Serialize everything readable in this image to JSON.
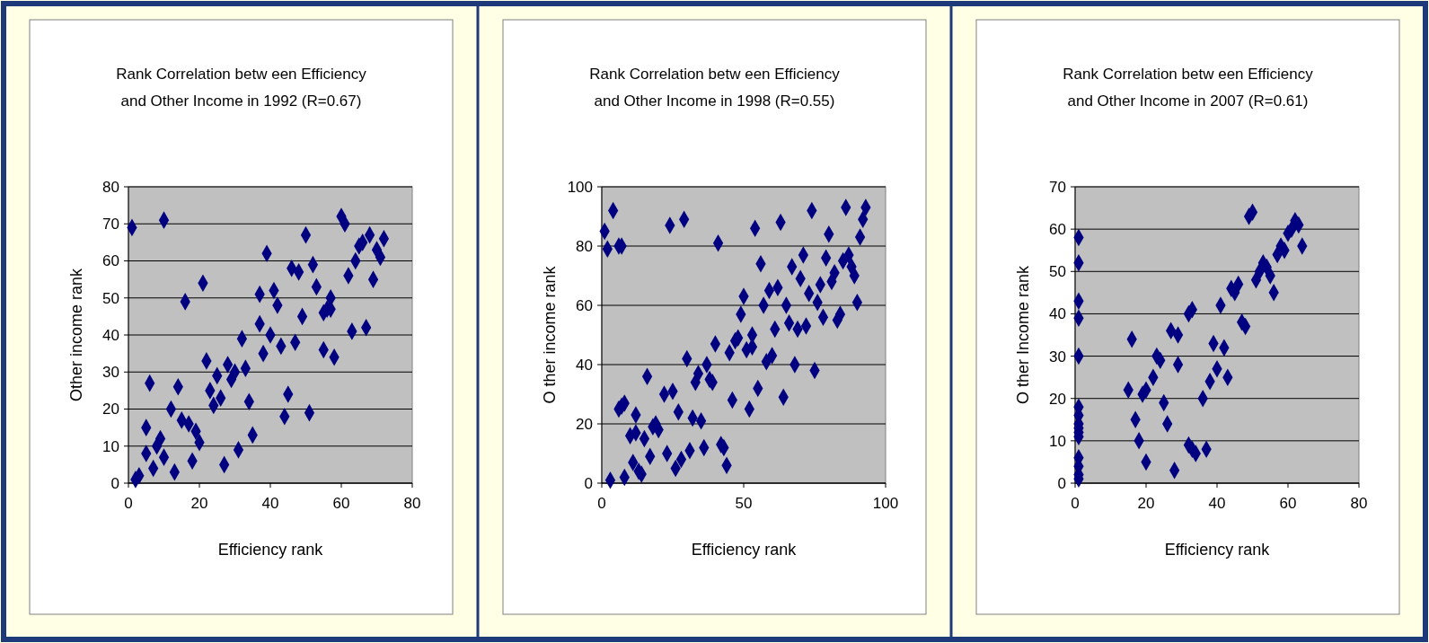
{
  "chart_data": [
    {
      "type": "scatter",
      "title": "Rank Correlation betw een Efficiency\nand Other Income in 1992 (R=0.67)",
      "xlabel": "Efficiency rank",
      "ylabel": "Other income rank",
      "xlim": [
        0,
        80
      ],
      "ylim": [
        0,
        80
      ],
      "xticks": [
        0,
        20,
        40,
        60,
        80
      ],
      "yticks": [
        0,
        10,
        20,
        30,
        40,
        50,
        60,
        70,
        80
      ],
      "grid": "y",
      "marker": "diamond",
      "series": [
        {
          "color": "#000080",
          "x": [
            1,
            2,
            3,
            5,
            5,
            6,
            7,
            8,
            9,
            10,
            10,
            12,
            13,
            14,
            15,
            16,
            17,
            18,
            19,
            20,
            21,
            22,
            23,
            24,
            25,
            26,
            27,
            28,
            29,
            30,
            31,
            32,
            33,
            34,
            35,
            37,
            37,
            38,
            39,
            40,
            41,
            42,
            43,
            44,
            45,
            46,
            47,
            48,
            49,
            50,
            51,
            52,
            53,
            55,
            55,
            56,
            57,
            57,
            58,
            60,
            61,
            62,
            63,
            64,
            65,
            66,
            67,
            68,
            69,
            70,
            71,
            72
          ],
          "values": [
            69,
            1,
            2,
            15,
            8,
            27,
            4,
            10,
            12,
            71,
            7,
            20,
            3,
            26,
            17,
            49,
            16,
            6,
            14,
            11,
            54,
            33,
            25,
            21,
            29,
            23,
            5,
            32,
            28,
            30,
            9,
            39,
            31,
            22,
            13,
            43,
            51,
            35,
            62,
            40,
            52,
            48,
            37,
            18,
            24,
            58,
            38,
            57,
            45,
            67,
            19,
            59,
            53,
            36,
            46,
            47,
            50,
            47,
            34,
            72,
            70,
            56,
            41,
            60,
            64,
            65,
            42,
            67,
            55,
            63,
            61,
            66
          ]
        }
      ]
    },
    {
      "type": "scatter",
      "title": "Rank Correlation betw een Efficiency\nand Other Income in 1998 (R=0.55)",
      "xlabel": "Efficiency rank",
      "ylabel": "O ther income rank",
      "xlim": [
        0,
        100
      ],
      "ylim": [
        0,
        100
      ],
      "xticks": [
        0,
        50,
        100
      ],
      "yticks": [
        0,
        20,
        40,
        60,
        80,
        100
      ],
      "grid": "y",
      "marker": "diamond",
      "series": [
        {
          "color": "#000080",
          "x": [
            1,
            2,
            4,
            6,
            7,
            3,
            8,
            6,
            7,
            8,
            10,
            11,
            12,
            12,
            13,
            14,
            15,
            16,
            17,
            18,
            19,
            20,
            22,
            23,
            24,
            25,
            26,
            27,
            28,
            29,
            30,
            31,
            32,
            33,
            34,
            35,
            36,
            37,
            38,
            39,
            40,
            41,
            42,
            43,
            44,
            45,
            46,
            47,
            48,
            49,
            50,
            51,
            52,
            53,
            53,
            54,
            55,
            56,
            57,
            58,
            59,
            60,
            61,
            62,
            63,
            64,
            65,
            66,
            67,
            68,
            69,
            70,
            71,
            72,
            73,
            74,
            75,
            76,
            77,
            78,
            79,
            80,
            81,
            82,
            83,
            84,
            85,
            86,
            87,
            88,
            89,
            90,
            91,
            92,
            93
          ],
          "values": [
            85,
            79,
            92,
            80,
            80,
            1,
            2,
            25,
            26,
            27,
            16,
            7,
            17,
            23,
            4,
            3,
            15,
            36,
            9,
            19,
            20,
            18,
            30,
            10,
            87,
            31,
            5,
            24,
            8,
            89,
            42,
            11,
            22,
            34,
            37,
            21,
            12,
            40,
            35,
            34,
            47,
            81,
            13,
            12,
            6,
            44,
            28,
            48,
            49,
            57,
            63,
            45,
            25,
            50,
            46,
            86,
            32,
            74,
            60,
            41,
            65,
            43,
            52,
            66,
            88,
            29,
            60,
            54,
            73,
            40,
            52,
            69,
            77,
            53,
            64,
            92,
            38,
            61,
            67,
            56,
            76,
            84,
            68,
            71,
            55,
            57,
            75,
            93,
            77,
            73,
            70,
            61,
            83,
            89,
            93
          ]
        }
      ]
    },
    {
      "type": "scatter",
      "title": "Rank Correlation betw een Efficiency\nand Other Income in 2007 (R=0.61)",
      "xlabel": "Efficiency rank",
      "ylabel": "O ther Income rank",
      "xlim": [
        0,
        80
      ],
      "ylim": [
        0,
        70
      ],
      "xticks": [
        0,
        20,
        40,
        60,
        80
      ],
      "yticks": [
        0,
        10,
        20,
        30,
        40,
        50,
        60,
        70
      ],
      "grid": "y",
      "marker": "diamond",
      "series": [
        {
          "color": "#000080",
          "x": [
            1,
            1,
            1,
            1,
            1,
            1,
            1,
            1,
            1,
            1,
            1,
            1,
            1,
            1,
            1,
            15,
            16,
            17,
            18,
            19,
            20,
            20,
            22,
            23,
            24,
            25,
            26,
            27,
            28,
            29,
            29,
            32,
            33,
            32,
            33,
            34,
            36,
            37,
            38,
            39,
            40,
            41,
            42,
            43,
            44,
            45,
            46,
            47,
            48,
            49,
            50,
            51,
            52,
            53,
            54,
            55,
            56,
            57,
            58,
            59,
            60,
            61,
            62,
            63,
            64
          ],
          "values": [
            58,
            52,
            43,
            39,
            30,
            18,
            16,
            14,
            13,
            12,
            11,
            6,
            4,
            2,
            1,
            22,
            34,
            15,
            10,
            21,
            5,
            22,
            25,
            30,
            29,
            19,
            14,
            36,
            3,
            35,
            28,
            40,
            41,
            9,
            8,
            7,
            20,
            8,
            24,
            33,
            27,
            42,
            32,
            25,
            46,
            45,
            47,
            38,
            37,
            63,
            64,
            48,
            50,
            52,
            51,
            49,
            45,
            54,
            56,
            55,
            59,
            60,
            62,
            61,
            56
          ]
        }
      ]
    }
  ]
}
